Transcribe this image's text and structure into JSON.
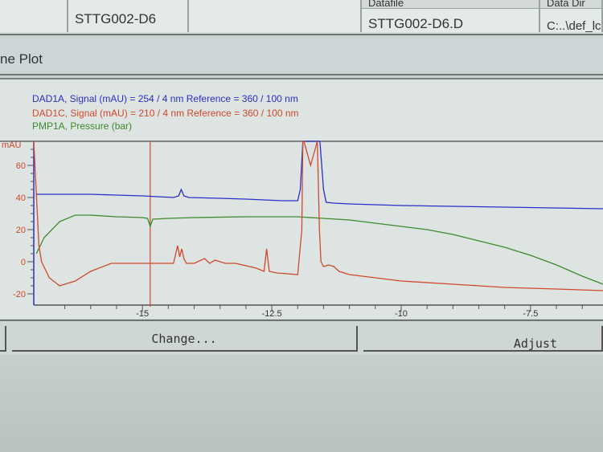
{
  "table_row": {
    "sample_name": "STTG002-D6",
    "datafile": "STTG002-D6.D",
    "data_dir": "C:..\\def_lc",
    "header_datafile": "Datafile",
    "header_data_dir": "Data Dir"
  },
  "panel_title": "ne Plot",
  "buttons": {
    "change": "Change...",
    "adjust": "Adjust"
  },
  "colors": {
    "dad1a": "#2a2fc8",
    "dad1c": "#d2482e",
    "pmp1a": "#3d8a2e",
    "axis": "#555555"
  },
  "chart_data": {
    "type": "line",
    "ylabel": "mAU",
    "xlim": [
      -17.1,
      -6.1
    ],
    "ylim": [
      -22,
      75
    ],
    "x_ticks": [
      -15,
      -12.5,
      -10,
      -7.5
    ],
    "y_ticks": [
      60,
      40,
      20,
      0,
      -20
    ],
    "marker_x": -14.85,
    "series": [
      {
        "name": "DAD1A, Signal (mAU) = 254 / 4 nm Reference = 360 / 100 nm",
        "color": "#2a2fc8",
        "x": [
          -17.05,
          -16.5,
          -16,
          -15.5,
          -15,
          -14.4,
          -14.3,
          -14.25,
          -14.2,
          -14.1,
          -13.5,
          -13,
          -12.3,
          -12,
          -11.95,
          -11.9,
          -11.88,
          -11.8,
          -11.62,
          -11.57,
          -11.5,
          -11.45,
          -11.3,
          -11,
          -10.5,
          -10,
          -8,
          -6.1
        ],
        "y": [
          42,
          42,
          42,
          41.5,
          41,
          40,
          41,
          45,
          41,
          40,
          39.5,
          39,
          38,
          38,
          45,
          75,
          75,
          75,
          75,
          75,
          45,
          37,
          36.5,
          36,
          35.5,
          35,
          34,
          33
        ]
      },
      {
        "name": "DAD1C, Signal (mAU) = 210 / 4 nm Reference = 360 / 100 nm",
        "color": "#d2482e",
        "x": [
          -17.1,
          -17.0,
          -16.95,
          -16.8,
          -16.6,
          -16.3,
          -16,
          -15.6,
          -15.2,
          -14.4,
          -14.32,
          -14.28,
          -14.24,
          -14.2,
          -14.15,
          -14.0,
          -13.8,
          -13.7,
          -13.6,
          -13.4,
          -13.2,
          -12.8,
          -12.65,
          -12.6,
          -12.55,
          -12.4,
          -12.0,
          -11.92,
          -11.9,
          -11.88,
          -11.75,
          -11.62,
          -11.58,
          -11.55,
          -11.5,
          -11.4,
          -11.3,
          -11.2,
          -11,
          -10.5,
          -10,
          -9,
          -8,
          -7,
          -6.1
        ],
        "y": [
          75,
          10,
          0,
          -10,
          -15,
          -12,
          -6,
          -1,
          -1,
          -1,
          10,
          3,
          8,
          2,
          -1,
          -1,
          2,
          -1,
          1,
          -1,
          -1,
          -4,
          -6,
          8,
          -6,
          -7,
          -8,
          20,
          75,
          75,
          60,
          75,
          20,
          0,
          -3,
          -2,
          -3,
          -6,
          -8,
          -10,
          -12,
          -14,
          -16,
          -17,
          -18
        ]
      },
      {
        "name": "PMP1A, Pressure (bar)",
        "color": "#3d8a2e",
        "x": [
          -17.05,
          -16.9,
          -16.6,
          -16.3,
          -16,
          -15.5,
          -15,
          -14.9,
          -14.85,
          -14.8,
          -14.5,
          -14,
          -13,
          -12,
          -11.5,
          -11,
          -10.5,
          -10,
          -9.5,
          -9,
          -8.5,
          -8,
          -7.5,
          -7,
          -6.5,
          -6.1
        ],
        "y": [
          5,
          15,
          25,
          29,
          29,
          28,
          27.5,
          27,
          22,
          26.5,
          27,
          27.5,
          28,
          28,
          27,
          26,
          24,
          22,
          20,
          17,
          13,
          9,
          4,
          -2,
          -9,
          -14
        ]
      }
    ]
  }
}
